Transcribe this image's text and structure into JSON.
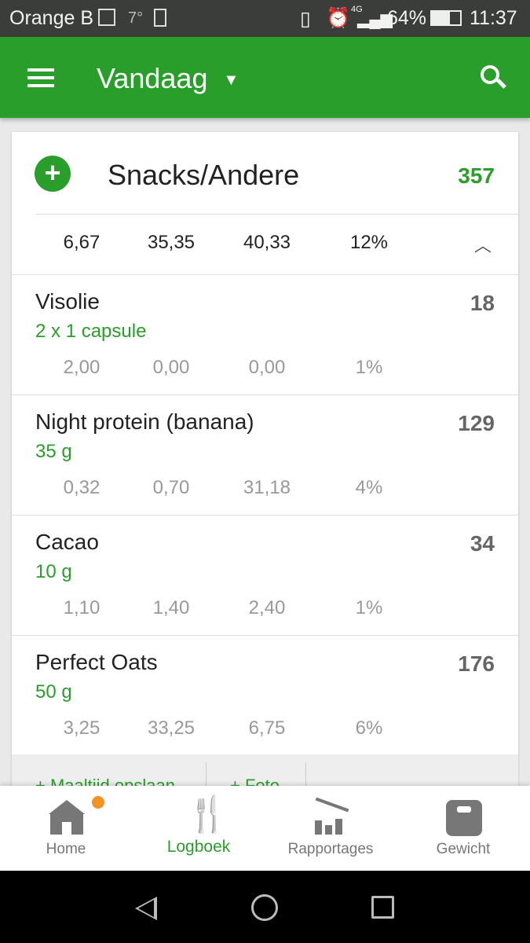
{
  "status": {
    "carrier": "Orange B",
    "temp": "7°",
    "network": "4G",
    "battery": "64%",
    "time": "11:37"
  },
  "appbar": {
    "title": "Vandaag"
  },
  "meal": {
    "name": "Snacks/Andere",
    "calories": "357",
    "totals": [
      "6,67",
      "35,35",
      "40,33",
      "12%"
    ]
  },
  "items": [
    {
      "name": "Visolie",
      "qty": "2  x 1 capsule",
      "calories": "18",
      "values": [
        "2,00",
        "0,00",
        "0,00",
        "1%"
      ]
    },
    {
      "name": "Night protein (banana)",
      "qty": "35 g",
      "calories": "129",
      "values": [
        "0,32",
        "0,70",
        "31,18",
        "4%"
      ]
    },
    {
      "name": "Cacao",
      "qty": "10 g",
      "calories": "34",
      "values": [
        "1,10",
        "1,40",
        "2,40",
        "1%"
      ]
    },
    {
      "name": "Perfect Oats",
      "qty": "50 g",
      "calories": "176",
      "values": [
        "3,25",
        "33,25",
        "6,75",
        "6%"
      ]
    }
  ],
  "footer": {
    "save_meal": "+ Maaltijd opslaan",
    "photo": "+ Foto"
  },
  "nav": [
    {
      "label": "Home"
    },
    {
      "label": "Logboek"
    },
    {
      "label": "Rapportages"
    },
    {
      "label": "Gewicht"
    }
  ],
  "colors": {
    "accent": "#2a9e2b",
    "badge": "#f39325"
  }
}
